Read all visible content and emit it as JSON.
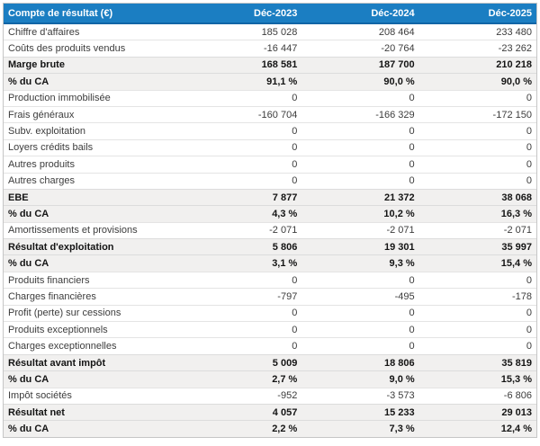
{
  "colors": {
    "header_bg": "#1b7ec2",
    "header_border_bottom": "#1165a6",
    "header_text": "#ffffff",
    "emphasis_row_bg": "#f1f0ef",
    "row_separator": "#e4e4e4",
    "outer_border": "#c6c6c6",
    "body_text": "#3c3c3c"
  },
  "table": {
    "title": "Compte de résultat (€)",
    "columns": [
      "Déc-2023",
      "Déc-2024",
      "Déc-2025"
    ],
    "rows": [
      {
        "label": "Chiffre d'affaires",
        "values": [
          "185 028",
          "208 464",
          "233 480"
        ],
        "emphasis": false
      },
      {
        "label": "Coûts des produits vendus",
        "values": [
          "-16 447",
          "-20 764",
          "-23 262"
        ],
        "emphasis": false
      },
      {
        "label": "Marge brute",
        "values": [
          "168 581",
          "187 700",
          "210 218"
        ],
        "emphasis": true
      },
      {
        "label": "% du CA",
        "values": [
          "91,1 %",
          "90,0 %",
          "90,0 %"
        ],
        "emphasis": true
      },
      {
        "label": "Production immobilisée",
        "values": [
          "0",
          "0",
          "0"
        ],
        "emphasis": false
      },
      {
        "label": "Frais généraux",
        "values": [
          "-160 704",
          "-166 329",
          "-172 150"
        ],
        "emphasis": false
      },
      {
        "label": "Subv. exploitation",
        "values": [
          "0",
          "0",
          "0"
        ],
        "emphasis": false
      },
      {
        "label": "Loyers crédits bails",
        "values": [
          "0",
          "0",
          "0"
        ],
        "emphasis": false
      },
      {
        "label": "Autres produits",
        "values": [
          "0",
          "0",
          "0"
        ],
        "emphasis": false
      },
      {
        "label": "Autres charges",
        "values": [
          "0",
          "0",
          "0"
        ],
        "emphasis": false
      },
      {
        "label": "EBE",
        "values": [
          "7 877",
          "21 372",
          "38 068"
        ],
        "emphasis": true
      },
      {
        "label": "% du CA",
        "values": [
          "4,3 %",
          "10,2 %",
          "16,3 %"
        ],
        "emphasis": true
      },
      {
        "label": "Amortissements et provisions",
        "values": [
          "-2 071",
          "-2 071",
          "-2 071"
        ],
        "emphasis": false
      },
      {
        "label": "Résultat d'exploitation",
        "values": [
          "5 806",
          "19 301",
          "35 997"
        ],
        "emphasis": true
      },
      {
        "label": "% du CA",
        "values": [
          "3,1 %",
          "9,3 %",
          "15,4 %"
        ],
        "emphasis": true
      },
      {
        "label": "Produits financiers",
        "values": [
          "0",
          "0",
          "0"
        ],
        "emphasis": false
      },
      {
        "label": "Charges financières",
        "values": [
          "-797",
          "-495",
          "-178"
        ],
        "emphasis": false
      },
      {
        "label": "Profit (perte) sur cessions",
        "values": [
          "0",
          "0",
          "0"
        ],
        "emphasis": false
      },
      {
        "label": "Produits exceptionnels",
        "values": [
          "0",
          "0",
          "0"
        ],
        "emphasis": false
      },
      {
        "label": "Charges exceptionnelles",
        "values": [
          "0",
          "0",
          "0"
        ],
        "emphasis": false
      },
      {
        "label": "Résultat avant impôt",
        "values": [
          "5 009",
          "18 806",
          "35 819"
        ],
        "emphasis": true
      },
      {
        "label": "% du CA",
        "values": [
          "2,7 %",
          "9,0 %",
          "15,3 %"
        ],
        "emphasis": true
      },
      {
        "label": "Impôt sociétés",
        "values": [
          "-952",
          "-3 573",
          "-6 806"
        ],
        "emphasis": false
      },
      {
        "label": "Résultat net",
        "values": [
          "4 057",
          "15 233",
          "29 013"
        ],
        "emphasis": true
      },
      {
        "label": "% du CA",
        "values": [
          "2,2 %",
          "7,3 %",
          "12,4 %"
        ],
        "emphasis": true
      }
    ]
  }
}
